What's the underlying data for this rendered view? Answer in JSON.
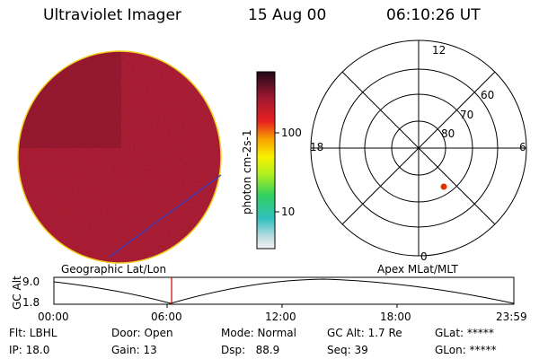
{
  "header": {
    "title": "Ultraviolet Imager",
    "date": "15 Aug 00",
    "time": "06:10:26 UT"
  },
  "colorbar": {
    "unit_label": "photon cm-2s-1",
    "ticks": [
      "100",
      "10"
    ]
  },
  "polar": {
    "mlt_labels": {
      "top": "12",
      "left": "18",
      "right": "6",
      "bottom": "0"
    },
    "lat_labels": [
      "60",
      "70",
      "80"
    ],
    "marker_color": "#e03000"
  },
  "timeline": {
    "left_label": "Geographic Lat/Lon",
    "right_label": "Apex MLat/MLT",
    "y_axis_label": "GC Alt",
    "y_ticks": [
      "9.0",
      "1.8"
    ],
    "x_ticks": [
      "00:00",
      "06:00",
      "12:00",
      "18:00",
      "23:59"
    ],
    "current_time_line_color": "#cc0000"
  },
  "status": {
    "row1": {
      "flt": "Flt: LBHL",
      "door": "Door: Open",
      "mode": "Mode: Normal",
      "gc_alt": "GC Alt: 1.7 Re",
      "glat": "GLat: *****"
    },
    "row2": {
      "ip": "IP: 18.0",
      "gain": "Gain: 13",
      "dsp": "Dsp:   88.9",
      "seq": "Seq: 39",
      "glon": "GLon: *****"
    }
  },
  "colors": {
    "image_base": "#a3162a",
    "image_rim": "#f0d020",
    "track_line": "#3040c8"
  }
}
